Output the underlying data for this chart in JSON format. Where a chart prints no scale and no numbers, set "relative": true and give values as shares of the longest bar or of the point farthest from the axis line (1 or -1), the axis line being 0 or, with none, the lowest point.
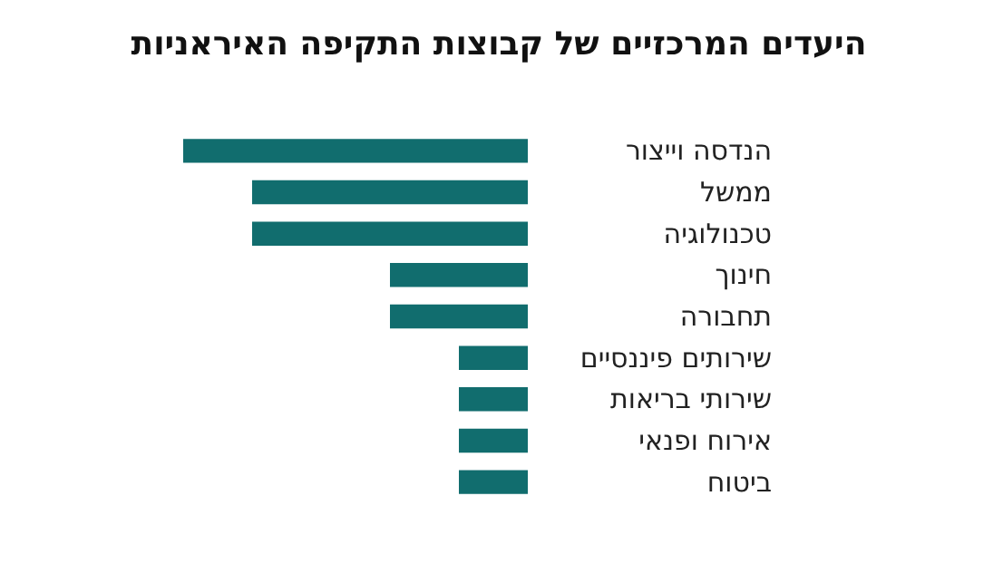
{
  "chart_data": {
    "type": "bar",
    "orientation": "horizontal",
    "relative": true,
    "title": "היעדים המרכזיים של קבוצות התקיפה האיראניות",
    "categories": [
      "הנדסה וייצור",
      "ממשל",
      "טכנולוגיה",
      "חינוך",
      "תחבורה",
      "שירותים פיננסיים",
      "שירותי בריאות",
      "אירוח ופנאי",
      "ביטוח"
    ],
    "values": [
      1,
      0.8,
      0.8,
      0.4,
      0.4,
      0.2,
      0.2,
      0.2,
      0.2
    ],
    "color": "#116d6e"
  }
}
